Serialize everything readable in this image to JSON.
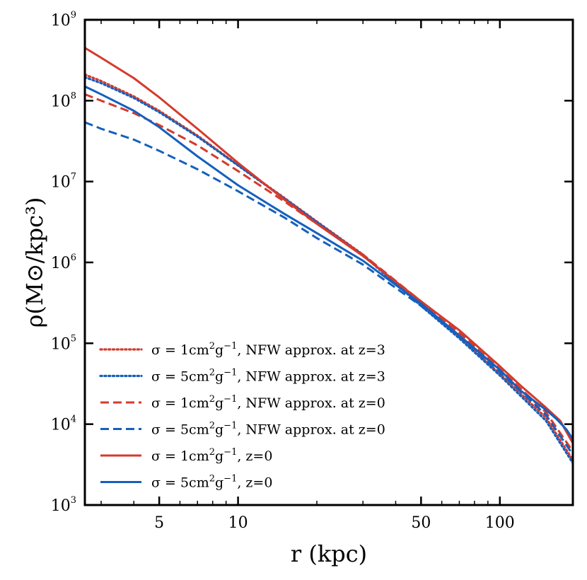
{
  "chart_data": {
    "type": "line",
    "xscale": "log",
    "yscale": "log",
    "xlim": [
      2.6,
      190
    ],
    "ylim": [
      1000,
      1000000000
    ],
    "xlabel": "r (kpc)",
    "ylabel": "ρ(M⊙/kpc³)",
    "x_ticks": [
      {
        "value": 5,
        "label": "5"
      },
      {
        "value": 10,
        "label": "10"
      },
      {
        "value": 50,
        "label": "50"
      },
      {
        "value": 100,
        "label": "100"
      }
    ],
    "y_ticks": [
      {
        "value": 1000,
        "base": "10",
        "exp": "3"
      },
      {
        "value": 10000,
        "base": "10",
        "exp": "4"
      },
      {
        "value": 100000,
        "base": "10",
        "exp": "5"
      },
      {
        "value": 1000000,
        "base": "10",
        "exp": "6"
      },
      {
        "value": 10000000,
        "base": "10",
        "exp": "7"
      },
      {
        "value": 100000000,
        "base": "10",
        "exp": "8"
      },
      {
        "value": 1000000000,
        "base": "10",
        "exp": "9"
      }
    ],
    "legend_position": "lower-left",
    "series": [
      {
        "name": "σ = 1cm²g⁻¹, NFW approx. at z=3",
        "legend": {
          "pre": "σ = 1cm",
          "s1": "2",
          "mid": "g",
          "s2": "−1",
          "post": ", NFW approx. at z=3"
        },
        "color": "#d53a2c",
        "style": "dotted",
        "x": [
          2.6,
          3,
          4,
          5,
          7,
          10,
          15,
          20,
          30,
          50,
          70,
          100,
          150,
          190
        ],
        "y": [
          210000000,
          175000000,
          113000000,
          75000000,
          37000000,
          16000000,
          6300000,
          3200000,
          1250000,
          300000,
          120000,
          42000,
          12000,
          3600
        ]
      },
      {
        "name": "σ = 5cm²g⁻¹, NFW approx. at z=3",
        "legend": {
          "pre": "σ = 5cm",
          "s1": "2",
          "mid": "g",
          "s2": "−1",
          "post": ", NFW approx. at z=3"
        },
        "color": "#1560bd",
        "style": "dotted",
        "x": [
          2.6,
          3,
          4,
          5,
          7,
          10,
          15,
          20,
          30,
          50,
          70,
          100,
          150,
          190
        ],
        "y": [
          195000000,
          165000000,
          108000000,
          72000000,
          36000000,
          15800000,
          6200000,
          3150000,
          1230000,
          290000,
          115000,
          40000,
          11000,
          3300
        ]
      },
      {
        "name": "σ = 1cm²g⁻¹, NFW approx. at z=0",
        "legend": {
          "pre": "σ = 1cm",
          "s1": "2",
          "mid": "g",
          "s2": "−1",
          "post": ", NFW approx. at z=0"
        },
        "color": "#d53a2c",
        "style": "dashed",
        "x": [
          2.6,
          3,
          4,
          5,
          7,
          10,
          15,
          20,
          30,
          50,
          70,
          100,
          150,
          190
        ],
        "y": [
          120000000,
          100000000,
          70000000,
          50000000,
          28000000,
          13500000,
          5700000,
          3000000,
          1250000,
          330000,
          135000,
          48000,
          14000,
          4600
        ]
      },
      {
        "name": "σ = 5cm²g⁻¹, NFW approx. at z=0",
        "legend": {
          "pre": "σ = 5cm",
          "s1": "2",
          "mid": "g",
          "s2": "−1",
          "post": ", NFW approx. at z=0"
        },
        "color": "#1560bd",
        "style": "dashed",
        "x": [
          2.6,
          3,
          4,
          5,
          7,
          10,
          15,
          20,
          30,
          50,
          70,
          100,
          150,
          190
        ],
        "y": [
          54000000,
          45000000,
          33000000,
          24000000,
          14200000,
          7600000,
          3600000,
          2000000,
          940000,
          290000,
          122000,
          44000,
          13000,
          4200
        ]
      },
      {
        "name": "σ = 1cm²g⁻¹, z=0",
        "legend": {
          "pre": "σ = 1cm",
          "s1": "2",
          "mid": "g",
          "s2": "−1",
          "post": ", z=0"
        },
        "color": "#d53a2c",
        "style": "solid",
        "x": [
          2.6,
          3,
          4,
          5,
          7,
          10,
          15,
          20,
          30,
          50,
          70,
          100,
          120,
          150,
          170,
          190
        ],
        "y": [
          450000000,
          340000000,
          190000000,
          110000000,
          45000000,
          17000000,
          6000000,
          3000000,
          1200000,
          330000,
          145000,
          52000,
          30000,
          16000,
          11000,
          5800
        ]
      },
      {
        "name": "σ = 5cm²g⁻¹, z=0",
        "legend": {
          "pre": "σ = 5cm",
          "s1": "2",
          "mid": "g",
          "s2": "−1",
          "post": ", z=0"
        },
        "color": "#1560bd",
        "style": "solid",
        "x": [
          2.6,
          3,
          4,
          5,
          7,
          10,
          15,
          20,
          30,
          50,
          70,
          100,
          120,
          150,
          165,
          180,
          190
        ],
        "y": [
          150000000,
          120000000,
          75000000,
          47000000,
          20500000,
          9000000,
          4000000,
          2300000,
          1050000,
          310000,
          125000,
          47000,
          26000,
          15000,
          11500,
          8500,
          6500
        ]
      }
    ]
  }
}
